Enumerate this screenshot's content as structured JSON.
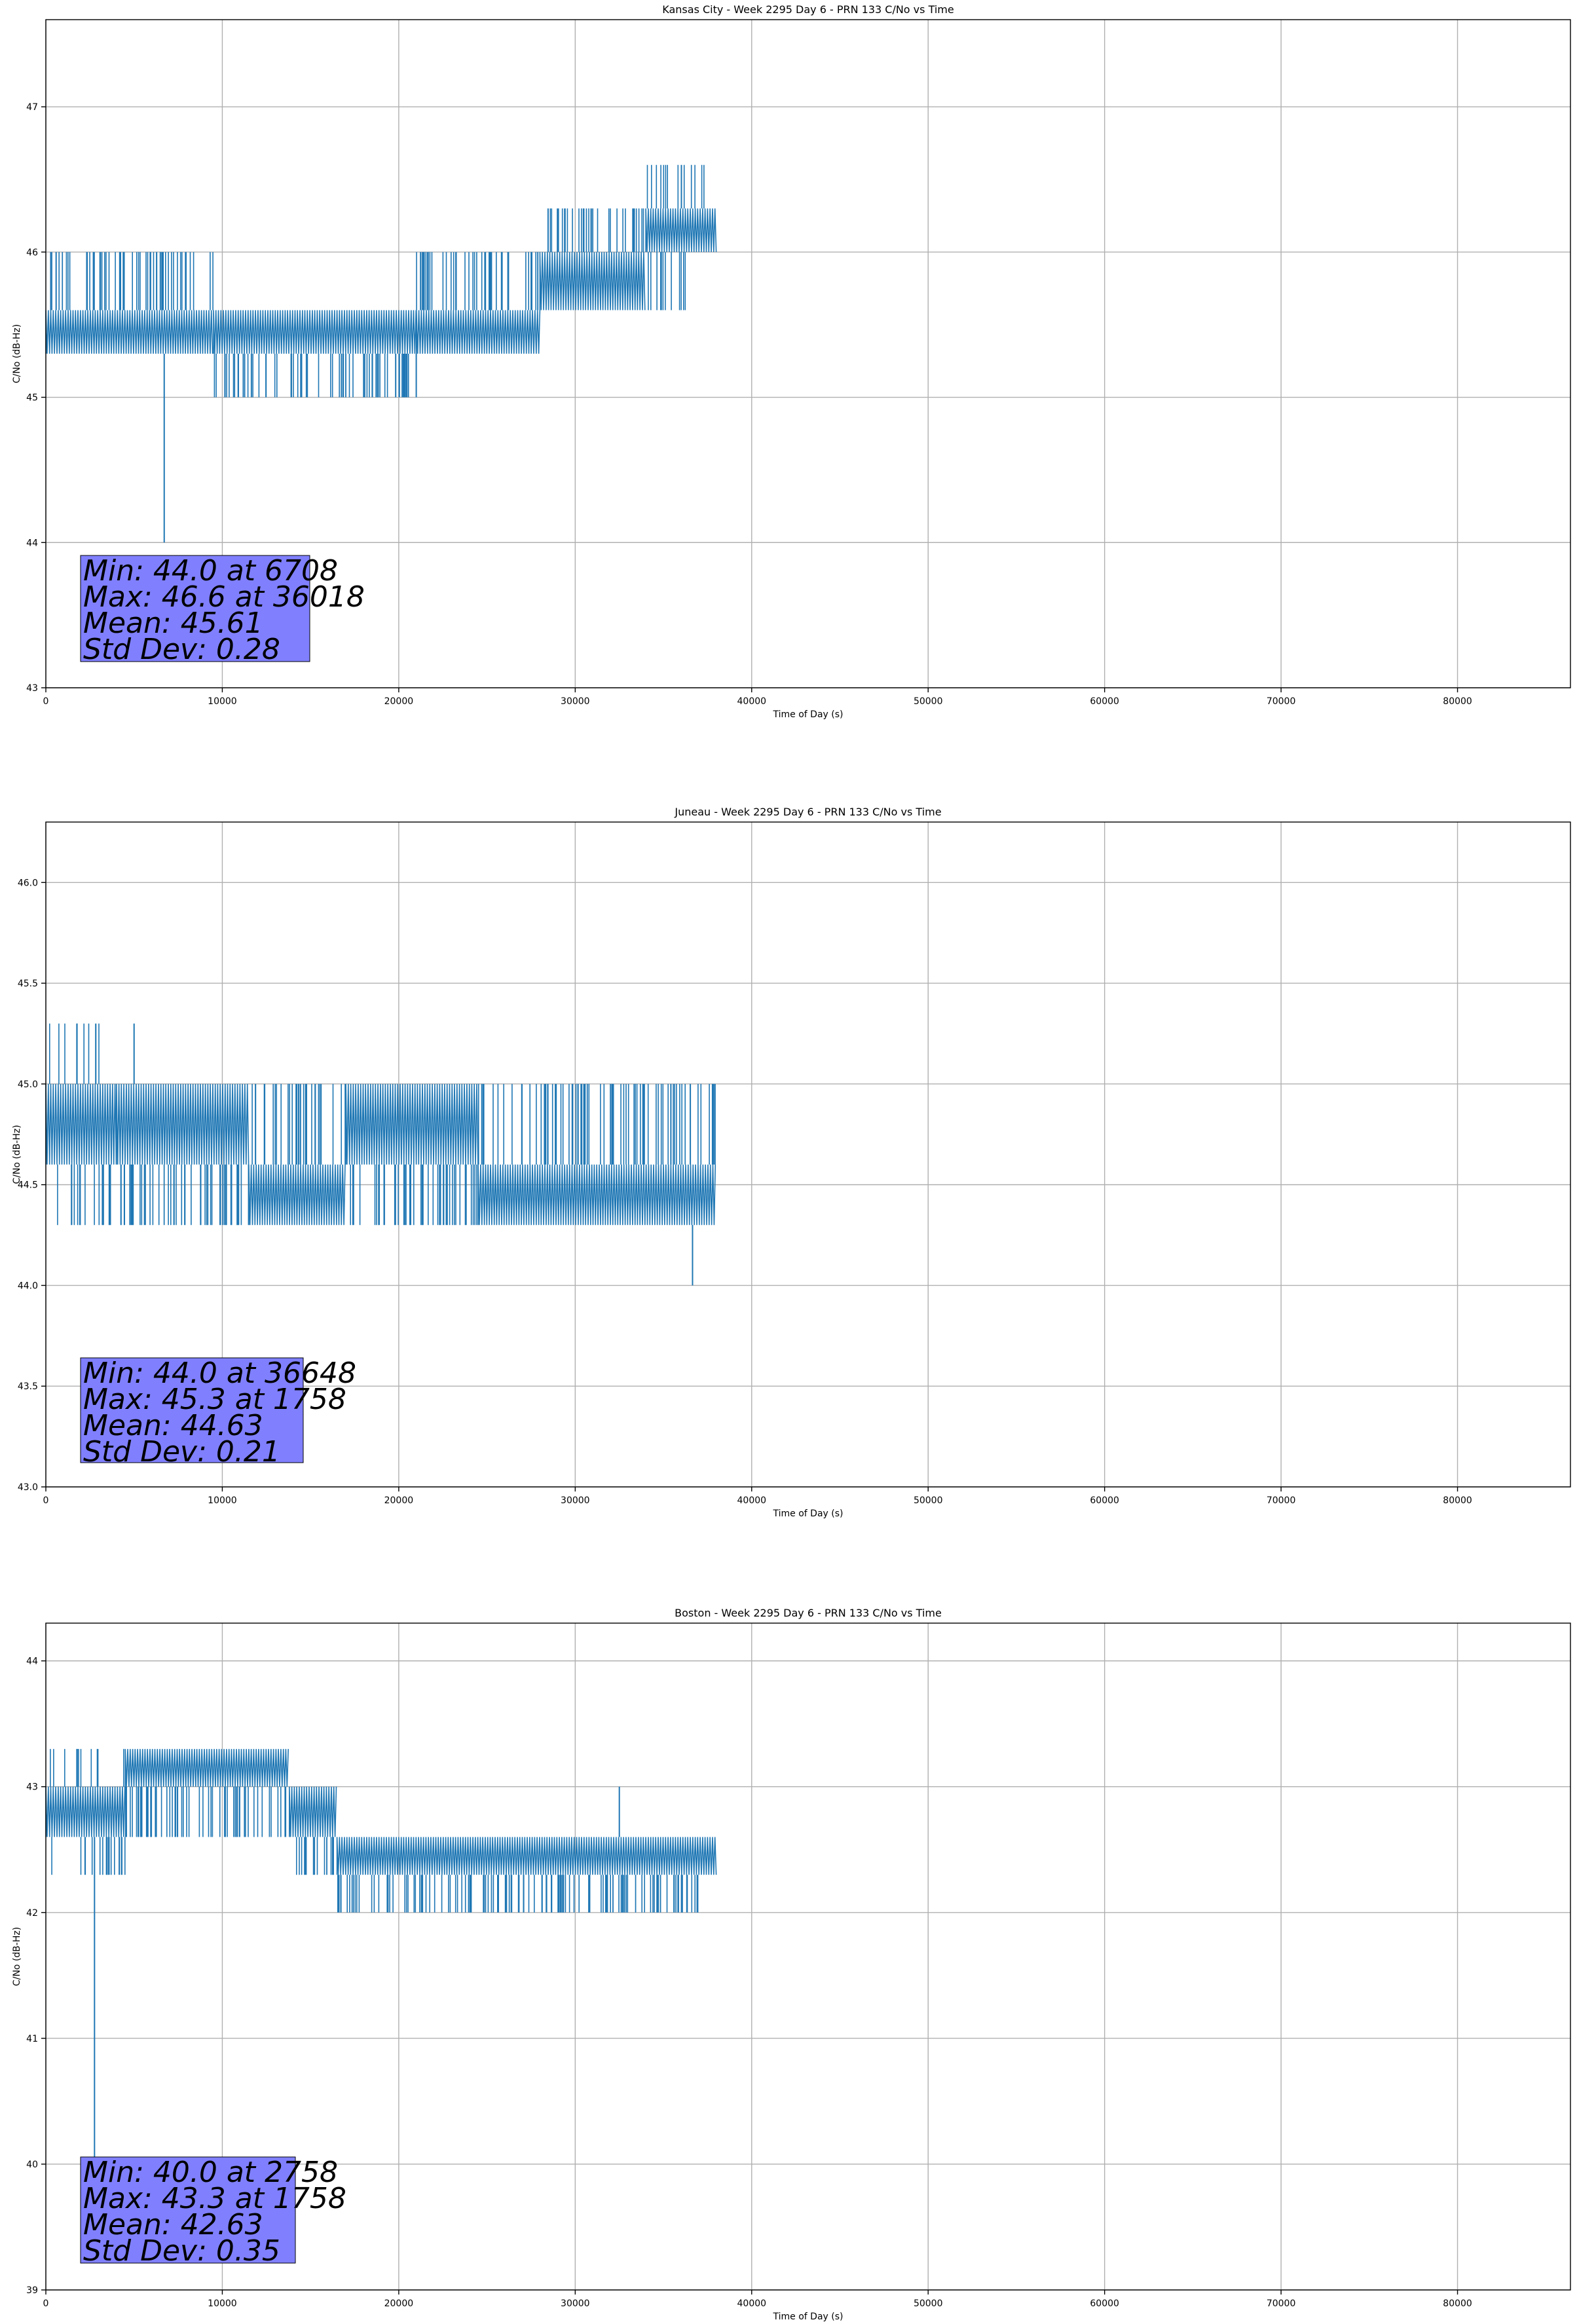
{
  "chart_data": [
    {
      "type": "line",
      "title": "Kansas City - Week 2295 Day 6 - PRN 133 C/No vs Time",
      "xlabel": "Time of Day (s)",
      "ylabel": "C/No (dB-Hz)",
      "xlim": [
        0,
        86400
      ],
      "ylim": [
        43.0,
        47.6
      ],
      "xticks": [
        0,
        10000,
        20000,
        30000,
        40000,
        50000,
        60000,
        70000,
        80000
      ],
      "xtick_labels": [
        "0",
        "10000",
        "20000",
        "30000",
        "40000",
        "50000",
        "60000",
        "70000",
        "80000"
      ],
      "yticks": [
        43,
        44,
        45,
        46,
        47
      ],
      "ytick_labels": [
        "43",
        "44",
        "45",
        "46",
        "47"
      ],
      "grid": true,
      "line_color": "#1f77b4",
      "series": [
        {
          "name": "",
          "segments": [
            {
              "x_start": 0,
              "x_end": 9500,
              "low": 45.3,
              "high": 45.6,
              "spike_low": 45.3,
              "spike_high": 46.0
            },
            {
              "x_start": 9500,
              "x_end": 21000,
              "low": 45.3,
              "high": 45.6,
              "spike_low": 45.0,
              "spike_high": 45.6
            },
            {
              "x_start": 21000,
              "x_end": 28000,
              "low": 45.3,
              "high": 45.6,
              "spike_low": 45.3,
              "spike_high": 46.0
            },
            {
              "x_start": 28000,
              "x_end": 34000,
              "low": 45.6,
              "high": 46.0,
              "spike_low": 45.6,
              "spike_high": 46.3
            },
            {
              "x_start": 34000,
              "x_end": 38000,
              "low": 46.0,
              "high": 46.3,
              "spike_low": 45.6,
              "spike_high": 46.6
            }
          ],
          "extremes": [
            {
              "x": 6708,
              "y": 44.0
            },
            {
              "x": 36018,
              "y": 46.6
            }
          ]
        }
      ],
      "annotation": {
        "lines": [
          "Min: 44.0 at 6708",
          "Max: 46.6 at 36018",
          "Mean: 45.61",
          "Std Dev: 0.28"
        ],
        "box_color": "#8080ff"
      }
    },
    {
      "type": "line",
      "title": "Juneau - Week 2295 Day 6 - PRN 133 C/No vs Time",
      "xlabel": "Time of Day (s)",
      "ylabel": "C/No (dB-Hz)",
      "xlim": [
        0,
        86400
      ],
      "ylim": [
        43.0,
        46.3
      ],
      "xticks": [
        0,
        10000,
        20000,
        30000,
        40000,
        50000,
        60000,
        70000,
        80000
      ],
      "xtick_labels": [
        "0",
        "10000",
        "20000",
        "30000",
        "40000",
        "50000",
        "60000",
        "70000",
        "80000"
      ],
      "yticks": [
        43.0,
        43.5,
        44.0,
        44.5,
        45.0,
        45.5,
        46.0
      ],
      "ytick_labels": [
        "43.0",
        "43.5",
        "44.0",
        "44.5",
        "45.0",
        "45.5",
        "46.0"
      ],
      "grid": true,
      "line_color": "#1f77b4",
      "series": [
        {
          "name": "",
          "segments": [
            {
              "x_start": 0,
              "x_end": 4000,
              "low": 44.6,
              "high": 45.0,
              "spike_low": 44.3,
              "spike_high": 45.3
            },
            {
              "x_start": 4000,
              "x_end": 11500,
              "low": 44.6,
              "high": 45.0,
              "spike_low": 44.3,
              "spike_high": 45.0
            },
            {
              "x_start": 11500,
              "x_end": 17000,
              "low": 44.3,
              "high": 44.6,
              "spike_low": 44.3,
              "spike_high": 45.0
            },
            {
              "x_start": 17000,
              "x_end": 24500,
              "low": 44.6,
              "high": 45.0,
              "spike_low": 44.3,
              "spike_high": 45.0
            },
            {
              "x_start": 24500,
              "x_end": 38000,
              "low": 44.3,
              "high": 44.6,
              "spike_low": 44.3,
              "spike_high": 45.0
            }
          ],
          "extremes": [
            {
              "x": 36648,
              "y": 44.0
            },
            {
              "x": 1758,
              "y": 45.3
            },
            {
              "x": 5000,
              "y": 45.3
            }
          ]
        }
      ],
      "annotation": {
        "lines": [
          "Min: 44.0 at 36648",
          "Max: 45.3 at 1758",
          "Mean: 44.63",
          "Std Dev: 0.21"
        ],
        "box_color": "#8080ff"
      }
    },
    {
      "type": "line",
      "title": "Boston - Week 2295 Day 6 - PRN 133 C/No vs Time",
      "xlabel": "Time of Day (s)",
      "ylabel": "C/No (dB-Hz)",
      "xlim": [
        0,
        86400
      ],
      "ylim": [
        39.0,
        44.3
      ],
      "xticks": [
        0,
        10000,
        20000,
        30000,
        40000,
        50000,
        60000,
        70000,
        80000
      ],
      "xtick_labels": [
        "0",
        "10000",
        "20000",
        "30000",
        "40000",
        "50000",
        "60000",
        "70000",
        "80000"
      ],
      "yticks": [
        39,
        40,
        41,
        42,
        43,
        44
      ],
      "ytick_labels": [
        "39",
        "40",
        "41",
        "42",
        "43",
        "44"
      ],
      "grid": true,
      "line_color": "#1f77b4",
      "series": [
        {
          "name": "",
          "segments": [
            {
              "x_start": 0,
              "x_end": 4500,
              "low": 42.6,
              "high": 43.0,
              "spike_low": 42.3,
              "spike_high": 43.3
            },
            {
              "x_start": 4500,
              "x_end": 13800,
              "low": 43.0,
              "high": 43.3,
              "spike_low": 42.6,
              "spike_high": 43.3
            },
            {
              "x_start": 13800,
              "x_end": 16500,
              "low": 42.6,
              "high": 43.0,
              "spike_low": 42.3,
              "spike_high": 43.0
            },
            {
              "x_start": 16500,
              "x_end": 38000,
              "low": 42.3,
              "high": 42.6,
              "spike_low": 42.0,
              "spike_high": 42.6
            }
          ],
          "extremes": [
            {
              "x": 2758,
              "y": 40.0
            },
            {
              "x": 1758,
              "y": 43.3
            },
            {
              "x": 32500,
              "y": 43.0
            }
          ]
        }
      ],
      "annotation": {
        "lines": [
          "Min: 40.0 at 2758",
          "Max: 43.3 at 1758",
          "Mean: 42.63",
          "Std Dev: 0.35"
        ],
        "box_color": "#8080ff"
      }
    }
  ]
}
